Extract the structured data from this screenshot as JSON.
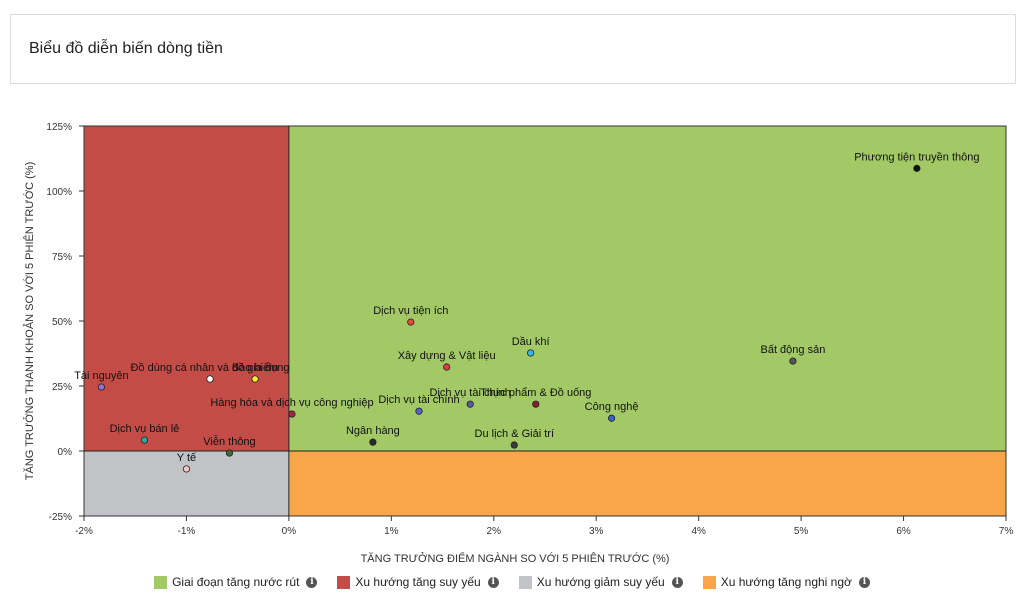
{
  "page": {
    "title": "Biểu đồ diễn biến dòng tiền"
  },
  "colors": {
    "accumulate": "#a3c966",
    "weak_up": "#c44c47",
    "weak_down": "#c2c3c6",
    "doubtful_up": "#f7a64a",
    "axis": "#222222"
  },
  "legend": [
    {
      "label": "Giai đoạn tăng nước rút",
      "color": "#a3c966",
      "icon": "info-icon"
    },
    {
      "label": "Xu hướng tăng suy yếu",
      "color": "#c44c47",
      "icon": "info-icon"
    },
    {
      "label": "Xu hướng giảm suy yếu",
      "color": "#c2c3c6",
      "icon": "info-icon"
    },
    {
      "label": "Xu hướng tăng nghi ngờ",
      "color": "#f7a64a",
      "icon": "info-icon"
    }
  ],
  "chart_data": {
    "type": "scatter",
    "title": "Biểu đồ diễn biến dòng tiền",
    "xlabel": "TĂNG TRƯỞNG ĐIỂM NGÀNH SO VỚI 5 PHIÊN TRƯỚC (%)",
    "ylabel": "TĂNG TRƯỞNG THANH KHOẢN SO VỚI 5 PHIÊN TRƯỚC (%)",
    "xlim": [
      -2,
      7
    ],
    "ylim": [
      -25,
      125
    ],
    "x_ticks": [
      -2,
      -1,
      0,
      1,
      2,
      3,
      4,
      5,
      6,
      7
    ],
    "x_tick_labels": [
      "-2%",
      "-1%",
      "0%",
      "1%",
      "2%",
      "3%",
      "4%",
      "5%",
      "6%",
      "7%"
    ],
    "y_ticks": [
      -25,
      0,
      25,
      50,
      75,
      100,
      125
    ],
    "y_tick_labels": [
      "-25%",
      "0%",
      "25%",
      "50%",
      "75%",
      "100%",
      "125%"
    ],
    "grid": false,
    "legend_position": "bottom",
    "points": [
      {
        "label": "Phương tiện truyền thông",
        "x": 6.13,
        "y": 108.7,
        "color": "#111111"
      },
      {
        "label": "Dịch vụ tiện ích",
        "x": 1.19,
        "y": 49.6,
        "color": "#e04b3a"
      },
      {
        "label": "Dầu khí",
        "x": 2.36,
        "y": 37.7,
        "color": "#36b6e8"
      },
      {
        "label": "Bất động sản",
        "x": 4.92,
        "y": 34.6,
        "color": "#555555"
      },
      {
        "label": "Xây dựng & Vật liệu",
        "x": 1.54,
        "y": 32.3,
        "color": "#d6404a"
      },
      {
        "label": "Đồ dùng cá nhân và đồ gia dụng",
        "x": -0.77,
        "y": 27.7,
        "color": "#ffffff"
      },
      {
        "label": "Bảo hiểm",
        "x": -0.33,
        "y": 27.7,
        "color": "#f5ee2f"
      },
      {
        "label": "Tài nguyên",
        "x": -1.83,
        "y": 24.6,
        "color": "#9b6cd8"
      },
      {
        "label": "Thực phẩm & Đồ uống",
        "x": 2.41,
        "y": 18.0,
        "color": "#8a1c2c"
      },
      {
        "label": "Dịch vụ tài chính",
        "x": 1.77,
        "y": 18.0,
        "color": "#5c5aa8"
      },
      {
        "label": "Hàng hóa và dịch vụ công nghiệp",
        "x": 0.03,
        "y": 14.2,
        "color": "#a8244a"
      },
      {
        "label": "Dịch vụ tài chính",
        "x": 1.27,
        "y": 15.3,
        "color": "#5560cc"
      },
      {
        "label": "Công nghệ",
        "x": 3.15,
        "y": 12.6,
        "color": "#3a60d0"
      },
      {
        "label": "Dịch vụ bán lẻ",
        "x": -1.41,
        "y": 4.2,
        "color": "#2ea7a0"
      },
      {
        "label": "Ngân hàng",
        "x": 0.82,
        "y": 3.4,
        "color": "#2a2a2a"
      },
      {
        "label": "Du lịch & Giải trí",
        "x": 2.2,
        "y": 2.3,
        "color": "#3a3a3a"
      },
      {
        "label": "Viễn thông",
        "x": -0.58,
        "y": -0.8,
        "color": "#3f6d2e"
      },
      {
        "label": "Y tế",
        "x": -1.0,
        "y": -6.9,
        "color": "#f8c8c0"
      }
    ],
    "quadrants": [
      {
        "label": "Giai đoạn tăng nước rút",
        "x": [
          0,
          7
        ],
        "y": [
          0,
          125
        ],
        "color": "#a3c966"
      },
      {
        "label": "Xu hướng tăng suy yếu",
        "x": [
          -2,
          0
        ],
        "y": [
          0,
          125
        ],
        "color": "#c44c47"
      },
      {
        "label": "Xu hướng giảm suy yếu",
        "x": [
          -2,
          0
        ],
        "y": [
          -25,
          0
        ],
        "color": "#c2c3c6"
      },
      {
        "label": "Xu hướng tăng nghi ngờ",
        "x": [
          0,
          7
        ],
        "y": [
          -25,
          0
        ],
        "color": "#f7a64a"
      }
    ]
  }
}
